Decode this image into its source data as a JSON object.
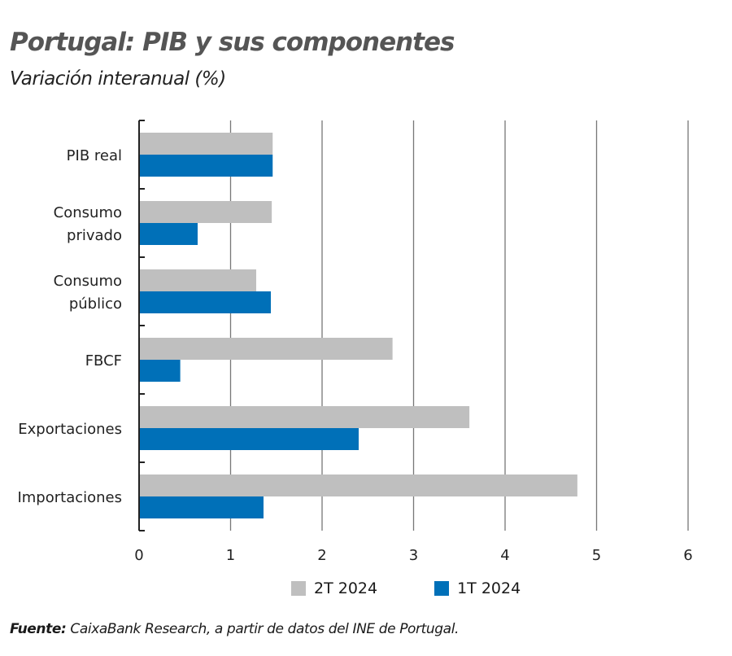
{
  "title": "Portugal: PIB y sus componentes",
  "subtitle": "Variación interanual (%)",
  "source": {
    "label": "Fuente:",
    "text": " CaixaBank Research, a partir de datos del INE de Portugal."
  },
  "chart_data": {
    "type": "bar",
    "orientation": "horizontal",
    "categories": [
      [
        "PIB real"
      ],
      [
        "Consumo",
        "privado"
      ],
      [
        "Consumo",
        "público"
      ],
      [
        "FBCF"
      ],
      [
        "Exportaciones"
      ],
      [
        "Importaciones"
      ]
    ],
    "series": [
      {
        "name": "2T 2024",
        "color": "#bfbfbf",
        "values": [
          1.46,
          1.45,
          1.28,
          2.77,
          3.61,
          4.79
        ]
      },
      {
        "name": "1T 2024",
        "color": "#0070b8",
        "values": [
          1.46,
          0.64,
          1.44,
          0.45,
          2.4,
          1.36
        ]
      }
    ],
    "xlim": [
      0,
      6
    ],
    "xticks": [
      "0",
      "1",
      "2",
      "3",
      "4",
      "5",
      "6"
    ],
    "grid": true,
    "legend": "bottom"
  }
}
